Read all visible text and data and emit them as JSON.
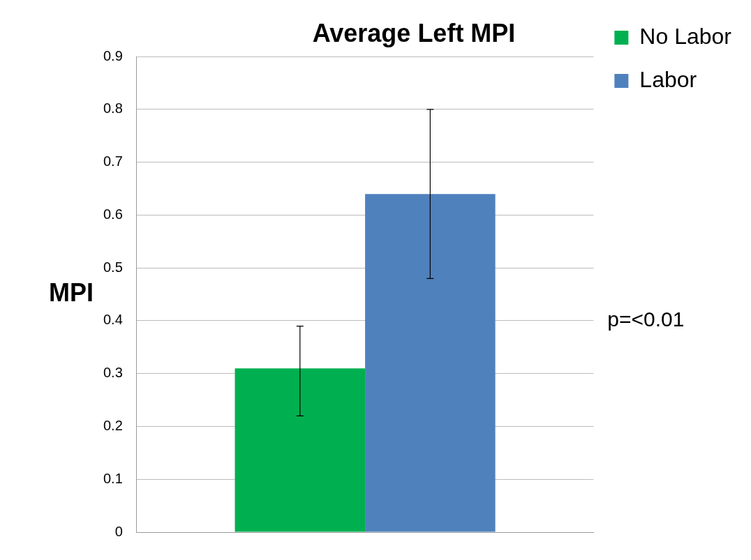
{
  "chart_data": {
    "type": "bar",
    "title": "Average Left MPI",
    "ylabel": "MPI",
    "categories": [
      null
    ],
    "series": [
      {
        "name": "No Labor",
        "color": "#00b050",
        "values": [
          0.31
        ],
        "errors": [
          [
            0.22,
            0.39
          ]
        ]
      },
      {
        "name": "Labor",
        "color": "#4f81bd",
        "values": [
          0.64
        ],
        "errors": [
          [
            0.48,
            0.8
          ]
        ]
      }
    ],
    "ylim": [
      0,
      0.9
    ],
    "yticks": [
      0,
      0.1,
      0.2,
      0.3,
      0.4,
      0.5,
      0.6,
      0.7,
      0.8,
      0.9
    ],
    "grid": "y",
    "legend": "right",
    "annotations": [
      "p=<0.01"
    ]
  }
}
